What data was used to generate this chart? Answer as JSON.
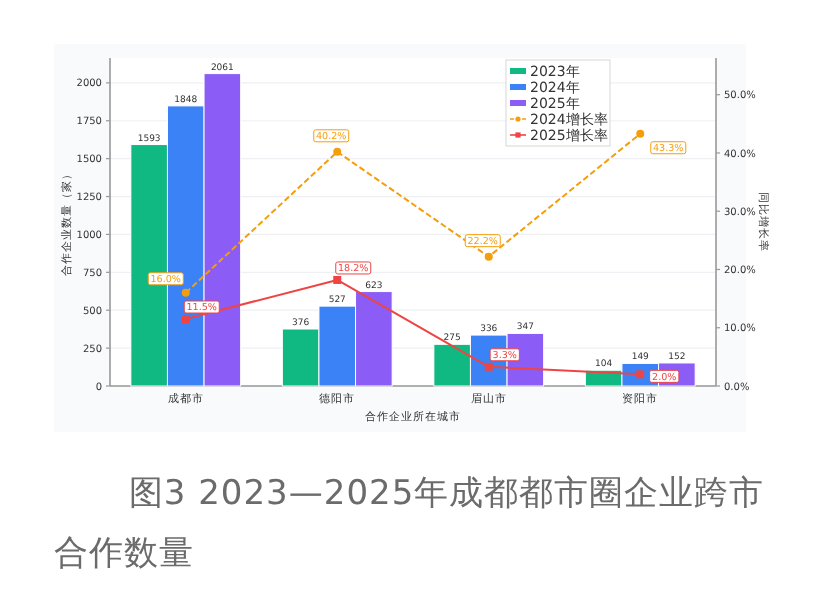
{
  "chart_data": {
    "type": "bar",
    "title": "图3 2023—2025年成都都市圈企业跨市合作数量",
    "xlabel": "合作企业所在城市",
    "ylabel": "合作企业数量（家）",
    "y2label": "同比增长率",
    "categories": [
      "成都市",
      "德阳市",
      "眉山市",
      "资阳市"
    ],
    "series": [
      {
        "name": "2023年",
        "color": "#10b981",
        "values": [
          1593,
          376,
          275,
          104
        ]
      },
      {
        "name": "2024年",
        "color": "#3b82f6",
        "values": [
          1848,
          527,
          336,
          149
        ]
      },
      {
        "name": "2025年",
        "color": "#8b5cf6",
        "values": [
          2061,
          623,
          347,
          152
        ]
      },
      {
        "name": "2024增长率",
        "type": "line",
        "axis": "y2",
        "color": "#f59e0b",
        "line_style": "dashed",
        "marker": "circle",
        "values": [
          16.0,
          40.2,
          22.2,
          43.3
        ],
        "value_labels": [
          "16.0%",
          "40.2%",
          "22.2%",
          "43.3%"
        ]
      },
      {
        "name": "2025增长率",
        "type": "line",
        "axis": "y2",
        "color": "#ef4444",
        "line_style": "solid",
        "marker": "square",
        "values": [
          11.5,
          18.2,
          3.3,
          2.0
        ],
        "value_labels": [
          "11.5%",
          "18.2%",
          "3.3%",
          "2.0%"
        ]
      }
    ],
    "ylim": [
      0,
      2164
    ],
    "yticks": [
      0,
      250,
      500,
      750,
      1000,
      1250,
      1500,
      1750,
      2000
    ],
    "y2lim": [
      0,
      56.3
    ],
    "y2ticks": [
      {
        "value": 0,
        "label": "0.0%"
      },
      {
        "value": 10,
        "label": "10.0%"
      },
      {
        "value": 20,
        "label": "20.0%"
      },
      {
        "value": 30,
        "label": "30.0%"
      },
      {
        "value": 40,
        "label": "40.0%"
      },
      {
        "value": 50,
        "label": "50.0%"
      }
    ],
    "data_labels": true,
    "grid": "y",
    "legend": "top right"
  }
}
